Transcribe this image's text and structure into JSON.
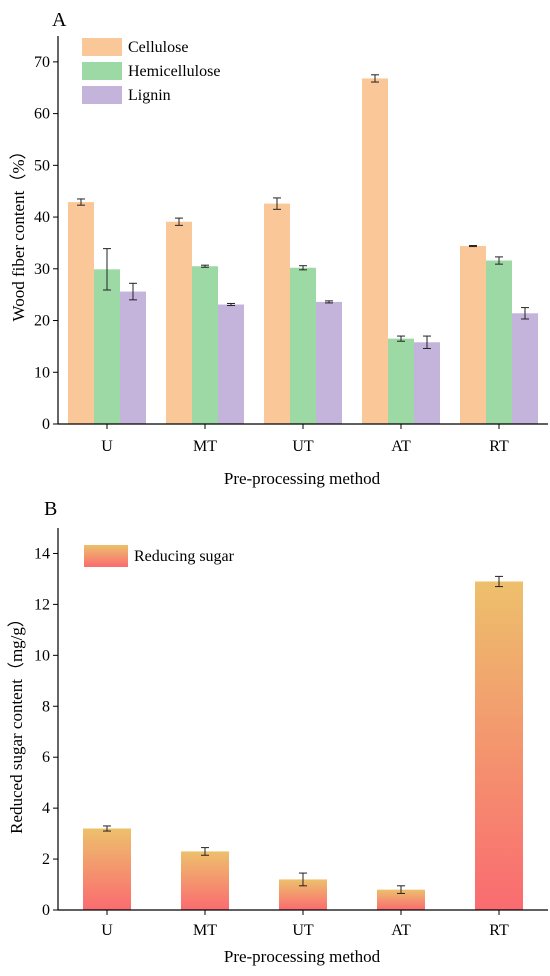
{
  "chart_data": [
    {
      "panel_label": "A",
      "type": "bar",
      "xlabel": "Pre-processing method",
      "ylabel": "Wood fiber content（%）",
      "categories": [
        "U",
        "MT",
        "UT",
        "AT",
        "RT"
      ],
      "ylim": [
        0,
        75
      ],
      "yticks": [
        0,
        10,
        20,
        30,
        40,
        50,
        60,
        70
      ],
      "legend_position": "top-left",
      "grid": false,
      "series": [
        {
          "name": "Cellulose",
          "color": "#FAC898",
          "values": [
            42.9,
            39.1,
            42.6,
            66.8,
            34.4
          ],
          "errors": [
            0.6,
            0.7,
            1.1,
            0.7,
            0.1
          ]
        },
        {
          "name": "Hemicellulose",
          "color": "#9CD9A4",
          "values": [
            29.9,
            30.5,
            30.2,
            16.5,
            31.6
          ],
          "errors": [
            4.0,
            0.2,
            0.4,
            0.5,
            0.7
          ]
        },
        {
          "name": "Lignin",
          "color": "#C4B4DC",
          "values": [
            25.6,
            23.1,
            23.6,
            15.8,
            21.4
          ],
          "errors": [
            1.6,
            0.2,
            0.2,
            1.2,
            1.1
          ]
        }
      ]
    },
    {
      "panel_label": "B",
      "type": "bar",
      "xlabel": "Pre-processing method",
      "ylabel": "Reduced sugar content（mg/g）",
      "categories": [
        "U",
        "MT",
        "UT",
        "AT",
        "RT"
      ],
      "ylim": [
        0,
        15
      ],
      "yticks": [
        0,
        2,
        4,
        6,
        8,
        10,
        12,
        14
      ],
      "legend_position": "top-left",
      "grid": false,
      "gradient": {
        "top": "#EDC06C",
        "bottom": "#FA6B70"
      },
      "series": [
        {
          "name": "Reducing sugar",
          "values": [
            3.2,
            2.3,
            1.2,
            0.8,
            12.9
          ],
          "errors": [
            0.1,
            0.15,
            0.25,
            0.15,
            0.2
          ]
        }
      ]
    }
  ]
}
